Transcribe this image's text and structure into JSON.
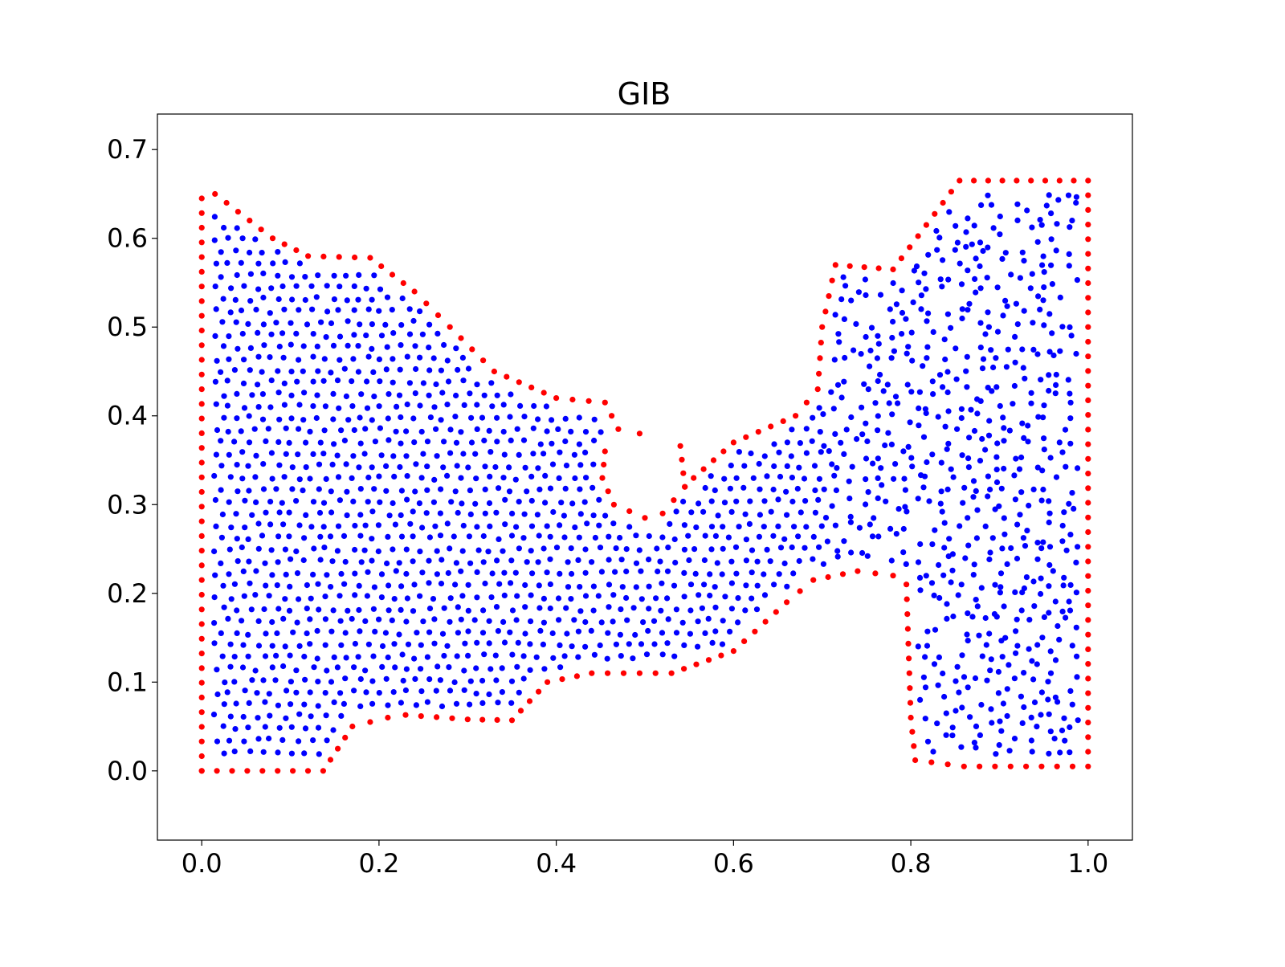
{
  "chart_data": {
    "type": "scatter",
    "title": "GIB",
    "xlabel": "",
    "ylabel": "",
    "xlim": [
      -0.05,
      1.05
    ],
    "ylim": [
      -0.078,
      0.74
    ],
    "x_ticks": [
      0.0,
      0.2,
      0.4,
      0.6,
      0.8,
      1.0
    ],
    "x_tick_labels": [
      "0.0",
      "0.2",
      "0.4",
      "0.6",
      "0.8",
      "1.0"
    ],
    "y_ticks": [
      0.0,
      0.1,
      0.2,
      0.3,
      0.4,
      0.5,
      0.6,
      0.7
    ],
    "y_tick_labels": [
      "0.0",
      "0.1",
      "0.2",
      "0.3",
      "0.4",
      "0.5",
      "0.6",
      "0.7"
    ],
    "grid": false,
    "legend": "none",
    "series": [
      {
        "role": "boundary",
        "color": "#ff0000",
        "note_points": "boundary points approx every ~0.017 along polyline",
        "polyline": [
          [
            0.0,
            0.0
          ],
          [
            0.137,
            0.0
          ],
          [
            0.17,
            0.05
          ],
          [
            0.21,
            0.06
          ],
          [
            0.23,
            0.063
          ],
          [
            0.3,
            0.058
          ],
          [
            0.35,
            0.057
          ],
          [
            0.39,
            0.1
          ],
          [
            0.44,
            0.11
          ],
          [
            0.53,
            0.11
          ],
          [
            0.6,
            0.135
          ],
          [
            0.66,
            0.19
          ],
          [
            0.69,
            0.215
          ],
          [
            0.74,
            0.225
          ],
          [
            0.78,
            0.22
          ],
          [
            0.795,
            0.21
          ],
          [
            0.8,
            0.06
          ],
          [
            0.805,
            0.012
          ],
          [
            0.86,
            0.005
          ],
          [
            1.0,
            0.005
          ],
          [
            1.0,
            0.665
          ],
          [
            0.855,
            0.665
          ],
          [
            0.78,
            0.565
          ],
          [
            0.715,
            0.57
          ],
          [
            0.7,
            0.5
          ],
          [
            0.695,
            0.43
          ],
          [
            0.67,
            0.4
          ],
          [
            0.6,
            0.37
          ],
          [
            0.555,
            0.33
          ],
          [
            0.545,
            0.32
          ],
          [
            0.54,
            0.366
          ]
        ],
        "polyline2": [
          [
            0.494,
            0.38
          ],
          [
            0.47,
            0.385
          ],
          [
            0.455,
            0.415
          ],
          [
            0.4,
            0.42
          ],
          [
            0.33,
            0.45
          ],
          [
            0.28,
            0.5
          ],
          [
            0.24,
            0.54
          ],
          [
            0.19,
            0.578
          ],
          [
            0.12,
            0.58
          ],
          [
            0.08,
            0.6
          ],
          [
            0.015,
            0.65
          ],
          [
            0.0,
            0.645
          ],
          [
            0.0,
            0.0
          ]
        ],
        "notch": [
          [
            0.455,
            0.36
          ],
          [
            0.452,
            0.33
          ],
          [
            0.465,
            0.3
          ],
          [
            0.5,
            0.285
          ],
          [
            0.52,
            0.29
          ],
          [
            0.545,
            0.32
          ]
        ]
      },
      {
        "role": "interior",
        "color": "#0000ff",
        "note_points": "interior points approx 1700, spacing ~0.016"
      }
    ]
  }
}
